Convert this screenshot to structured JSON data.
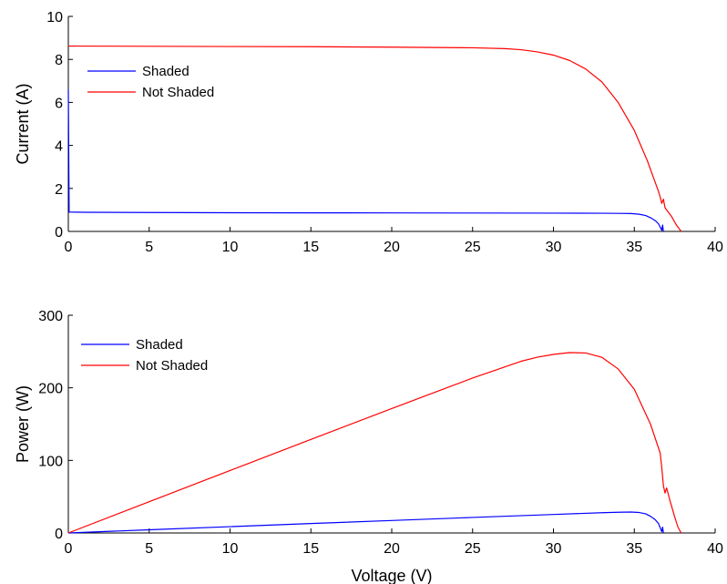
{
  "chart_data": [
    {
      "type": "line",
      "title": "",
      "xlabel": "",
      "ylabel": "Current (A)",
      "xlim": [
        0,
        40
      ],
      "ylim": [
        0,
        10
      ],
      "xticks": [
        0,
        5,
        10,
        15,
        20,
        25,
        30,
        35,
        40
      ],
      "yticks": [
        0,
        2,
        4,
        6,
        8,
        10
      ],
      "grid": false,
      "legend_position": "top-left",
      "series": [
        {
          "name": "Shaded",
          "color": "#0000ff",
          "points": [
            [
              0.0,
              6.6
            ],
            [
              0.05,
              0.9
            ],
            [
              1,
              0.89
            ],
            [
              5,
              0.88
            ],
            [
              10,
              0.87
            ],
            [
              15,
              0.865
            ],
            [
              20,
              0.86
            ],
            [
              25,
              0.855
            ],
            [
              30,
              0.85
            ],
            [
              33,
              0.845
            ],
            [
              34,
              0.84
            ],
            [
              34.8,
              0.83
            ],
            [
              35.3,
              0.8
            ],
            [
              35.7,
              0.74
            ],
            [
              36.0,
              0.64
            ],
            [
              36.3,
              0.5
            ],
            [
              36.5,
              0.35
            ],
            [
              36.6,
              0.2
            ],
            [
              36.7,
              0.05
            ],
            [
              36.75,
              0.3
            ],
            [
              36.8,
              0.0
            ]
          ]
        },
        {
          "name": "Not Shaded",
          "color": "#ff0000",
          "points": [
            [
              0,
              8.62
            ],
            [
              5,
              8.61
            ],
            [
              10,
              8.6
            ],
            [
              15,
              8.59
            ],
            [
              20,
              8.57
            ],
            [
              25,
              8.54
            ],
            [
              27,
              8.5
            ],
            [
              28,
              8.45
            ],
            [
              29,
              8.35
            ],
            [
              30,
              8.2
            ],
            [
              31,
              7.95
            ],
            [
              32,
              7.55
            ],
            [
              33,
              6.95
            ],
            [
              34,
              6.0
            ],
            [
              35,
              4.7
            ],
            [
              35.8,
              3.3
            ],
            [
              36.5,
              1.85
            ],
            [
              36.6,
              1.6
            ],
            [
              36.7,
              1.3
            ],
            [
              36.8,
              1.5
            ],
            [
              36.9,
              1.1
            ],
            [
              37.3,
              0.7
            ],
            [
              37.6,
              0.3
            ],
            [
              37.9,
              0.0
            ]
          ]
        }
      ]
    },
    {
      "type": "line",
      "title": "",
      "xlabel": "Voltage (V)",
      "ylabel": "Power (W)",
      "xlim": [
        0,
        40
      ],
      "ylim": [
        0,
        300
      ],
      "xticks": [
        0,
        5,
        10,
        15,
        20,
        25,
        30,
        35,
        40
      ],
      "yticks": [
        0,
        100,
        200,
        300
      ],
      "grid": false,
      "legend_position": "top-left",
      "series": [
        {
          "name": "Shaded",
          "color": "#0000ff",
          "points": [
            [
              0,
              0
            ],
            [
              5,
              4.4
            ],
            [
              10,
              8.7
            ],
            [
              15,
              13.0
            ],
            [
              20,
              17.2
            ],
            [
              25,
              21.4
            ],
            [
              30,
              25.5
            ],
            [
              33,
              27.9
            ],
            [
              34,
              28.6
            ],
            [
              34.8,
              28.9
            ],
            [
              35.3,
              28.2
            ],
            [
              35.7,
              26.4
            ],
            [
              36.0,
              23.0
            ],
            [
              36.3,
              18.2
            ],
            [
              36.5,
              12.8
            ],
            [
              36.6,
              7.3
            ],
            [
              36.7,
              1.8
            ],
            [
              36.75,
              8.0
            ],
            [
              36.8,
              0.0
            ]
          ]
        },
        {
          "name": "Not Shaded",
          "color": "#ff0000",
          "points": [
            [
              0,
              0
            ],
            [
              5,
              43.1
            ],
            [
              10,
              86.0
            ],
            [
              15,
              128.9
            ],
            [
              20,
              171.4
            ],
            [
              25,
              213.5
            ],
            [
              28,
              236.6
            ],
            [
              29,
              242.2
            ],
            [
              30,
              246.0
            ],
            [
              31,
              248.5
            ],
            [
              32,
              248.0
            ],
            [
              33,
              242.0
            ],
            [
              34,
              226.0
            ],
            [
              35,
              198.0
            ],
            [
              36,
              150.0
            ],
            [
              36.6,
              110.0
            ],
            [
              36.7,
              90.0
            ],
            [
              36.8,
              65.0
            ],
            [
              36.9,
              55.0
            ],
            [
              37.0,
              62.0
            ],
            [
              37.2,
              45.0
            ],
            [
              37.5,
              22.0
            ],
            [
              37.7,
              8.0
            ],
            [
              37.9,
              0.0
            ]
          ]
        }
      ]
    }
  ]
}
